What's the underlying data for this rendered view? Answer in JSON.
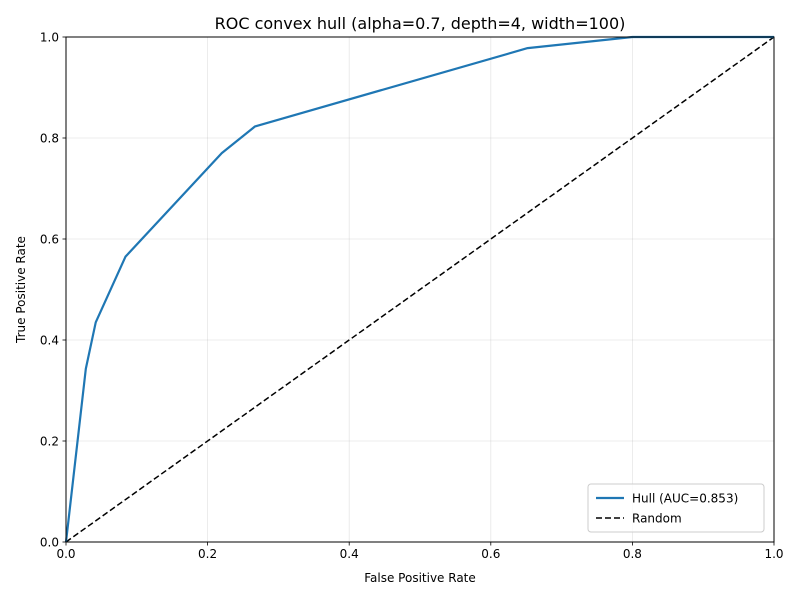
{
  "chart_data": {
    "type": "line",
    "title": "ROC convex hull (alpha=0.7, depth=4, width=100)",
    "xlabel": "False Positive Rate",
    "ylabel": "True Positive Rate",
    "xlim": [
      0,
      1
    ],
    "ylim": [
      0,
      1
    ],
    "xticks": [
      "0.0",
      "0.2",
      "0.4",
      "0.6",
      "0.8",
      "1.0"
    ],
    "yticks": [
      "0.0",
      "0.2",
      "0.4",
      "0.6",
      "0.8",
      "1.0"
    ],
    "grid": true,
    "legend_position": "lower-right",
    "series": [
      {
        "name": "Hull (AUC=0.853)",
        "color": "#1f77b4",
        "style": "solid",
        "x": [
          0.0,
          0.028,
          0.042,
          0.084,
          0.22,
          0.267,
          0.652,
          0.8,
          1.0
        ],
        "y": [
          0.0,
          0.343,
          0.435,
          0.565,
          0.77,
          0.823,
          0.978,
          1.0,
          1.0
        ]
      },
      {
        "name": "Random",
        "color": "#000000",
        "style": "dashed",
        "x": [
          0.0,
          1.0
        ],
        "y": [
          0.0,
          1.0
        ]
      }
    ]
  }
}
